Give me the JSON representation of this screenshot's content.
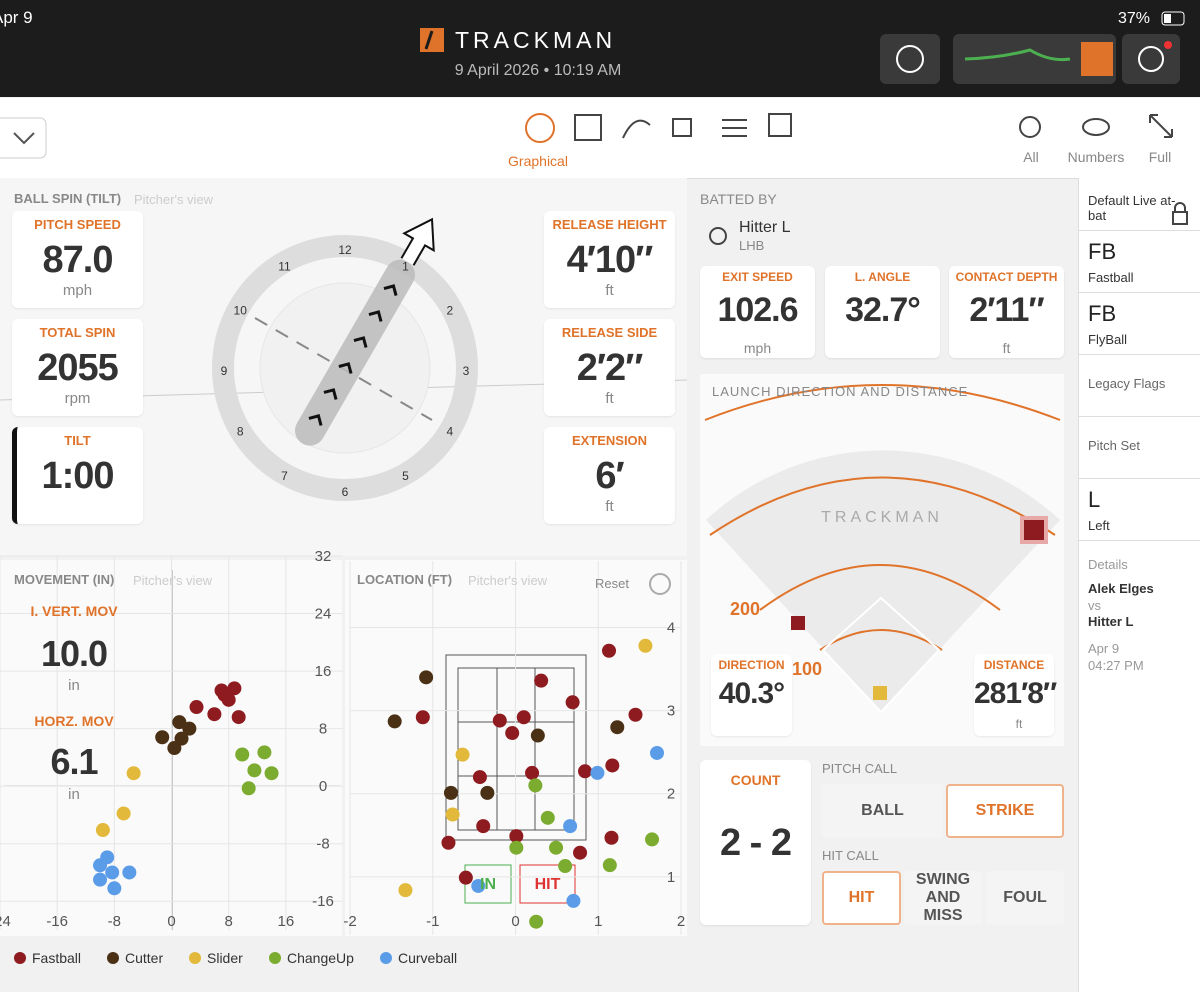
{
  "status_bar": {
    "date": "Apr 9",
    "battery": "37%"
  },
  "header": {
    "brand": "TRACKMAN",
    "datetime": "9 April 2026 • 10:19 AM"
  },
  "toolbar": {
    "active_tab": "Graphical",
    "views": [
      "All",
      "Numbers",
      "Full"
    ]
  },
  "ball_spin": {
    "title": "BALL SPIN (TILT)",
    "subtitle": "Pitcher's view",
    "clock": [
      "12",
      "1",
      "2",
      "3",
      "4",
      "5",
      "6",
      "7",
      "8",
      "9",
      "10",
      "11"
    ],
    "metrics": [
      {
        "label": "PITCH SPEED",
        "value": "87.0",
        "unit": "mph"
      },
      {
        "label": "TOTAL SPIN",
        "value": "2055",
        "unit": "rpm"
      },
      {
        "label": "TILT",
        "value": "1:00"
      },
      {
        "label": "RELEASE HEIGHT",
        "value": "4′10″",
        "unit": "ft"
      },
      {
        "label": "RELEASE SIDE",
        "value": "2′2″",
        "unit": "ft"
      },
      {
        "label": "EXTENSION",
        "value": "6′",
        "unit": "ft"
      }
    ]
  },
  "batted_by": {
    "title": "BATTED BY",
    "hitter": "Hitter L",
    "hand": "LHB",
    "metrics": [
      {
        "label": "EXIT SPEED",
        "value": "102.6",
        "unit": "mph"
      },
      {
        "label": "L. ANGLE",
        "value": "32.7°"
      },
      {
        "label": "CONTACT DEPTH",
        "value": "2′11″",
        "unit": "ft"
      }
    ]
  },
  "launch": {
    "title": "LAUNCH DIRECTION AND DISTANCE",
    "watermark": "TRACKMAN",
    "rings": [
      "200",
      "100"
    ],
    "direction": {
      "label": "DIRECTION",
      "value": "40.3°"
    },
    "distance": {
      "label": "DISTANCE",
      "value": "281′8″",
      "unit": "ft"
    }
  },
  "count": {
    "label": "COUNT",
    "value": "2 - 2"
  },
  "pitch_call": {
    "label": "PITCH CALL",
    "options": [
      "BALL",
      "STRIKE"
    ],
    "selected": "STRIKE"
  },
  "hit_call": {
    "label": "HIT CALL",
    "options": [
      "HIT",
      "SWING AND MISS",
      "FOUL"
    ],
    "selected": "HIT"
  },
  "sidebar": {
    "header": "Default Live at-bat",
    "items": [
      {
        "code": "FB",
        "label": "Fastball"
      },
      {
        "code": "FB",
        "label": "FlyBall"
      },
      {
        "label": "Legacy Flags"
      },
      {
        "label": "Pitch Set"
      },
      {
        "code": "L",
        "label": "Left"
      }
    ],
    "details": {
      "label": "Details",
      "pitcher": "Alek Elges",
      "vs": "vs",
      "hitter": "Hitter L",
      "date": "Apr 9",
      "time": "04:27 PM"
    }
  },
  "movement": {
    "title": "MOVEMENT (IN)",
    "subtitle": "Pitcher's view",
    "readouts": [
      {
        "label": "I. VERT. MOV",
        "value": "10.0",
        "unit": "in"
      },
      {
        "label": "HORZ. MOV",
        "value": "6.1",
        "unit": "in"
      }
    ],
    "xlim": [
      -24,
      24
    ],
    "ylim": [
      -20,
      32
    ],
    "xticks": [
      -24,
      -16,
      -8,
      0,
      8,
      16
    ],
    "yticks": [
      -16,
      -8,
      0,
      8,
      16,
      24,
      32
    ],
    "series": [
      {
        "name": "Fastball",
        "color": "#8e1b1f",
        "x": [
          3.5,
          6,
          7.4,
          8.8,
          9.4,
          8,
          7
        ],
        "y": [
          11,
          10,
          12.7,
          13.6,
          9.6,
          12,
          13.3
        ]
      },
      {
        "name": "Cutter",
        "color": "#4a3015",
        "x": [
          -1.3,
          0.4,
          1.1,
          2.5,
          1.4
        ],
        "y": [
          6.8,
          5.3,
          8.9,
          8,
          6.6
        ]
      },
      {
        "name": "Slider",
        "color": "#e2b93b",
        "x": [
          -5.3,
          -6.7,
          -9.6
        ],
        "y": [
          1.8,
          -3.8,
          -6.1
        ]
      },
      {
        "name": "ChangeUp",
        "color": "#7bab2f",
        "x": [
          9.9,
          13,
          11.6,
          14,
          10.8
        ],
        "y": [
          4.4,
          4.7,
          2.2,
          1.8,
          -0.3
        ]
      },
      {
        "name": "Curveball",
        "color": "#5b9ce9",
        "x": [
          -9,
          -10,
          -8.3,
          -10,
          -8,
          -5.9
        ],
        "y": [
          -9.9,
          -11,
          -12,
          -13,
          -14.2,
          -12
        ]
      }
    ]
  },
  "location": {
    "title": "LOCATION (FT)",
    "subtitle": "Pitcher's view",
    "reset": "Reset",
    "zone_labels": [
      "IN",
      "HIT"
    ],
    "xlim": [
      -2,
      2
    ],
    "ylim": [
      0.3,
      4.8
    ],
    "xticks": [
      -2,
      -1,
      0,
      1,
      2
    ],
    "yticks": [
      1,
      2,
      3,
      4
    ],
    "series": [
      {
        "x": [
          0.31,
          1.13,
          -1.12,
          -0.19,
          0.1,
          -0.04,
          0.69,
          0.84,
          1.17,
          1.45,
          -0.81,
          -0.39,
          0.01,
          0.2,
          -0.6,
          1.16,
          0.78,
          -0.43
        ],
        "y": [
          3.36,
          3.72,
          2.92,
          2.88,
          2.92,
          2.73,
          3.1,
          2.27,
          2.34,
          2.95,
          1.41,
          1.61,
          1.49,
          2.25,
          0.99,
          1.47,
          1.29,
          2.2
        ]
      },
      {
        "x": [
          -1.08,
          -1.46,
          -0.78,
          -0.34,
          0.27,
          1.23
        ],
        "y": [
          3.4,
          2.87,
          2.01,
          2.01,
          2.7,
          2.8
        ]
      },
      {
        "x": [
          1.57,
          -0.64,
          -0.76,
          -1.33
        ],
        "y": [
          3.78,
          2.47,
          1.75,
          0.84
        ]
      },
      {
        "x": [
          0.24,
          0.39,
          0.01,
          0.49,
          1.14,
          1.65,
          0.6,
          0.25
        ],
        "y": [
          2.1,
          1.71,
          1.35,
          1.35,
          1.14,
          1.45,
          1.13,
          0.46
        ]
      },
      {
        "x": [
          1.71,
          0.99,
          0.66,
          -0.45,
          0.7
        ],
        "y": [
          2.49,
          2.25,
          1.61,
          0.89,
          0.71
        ]
      }
    ]
  }
}
